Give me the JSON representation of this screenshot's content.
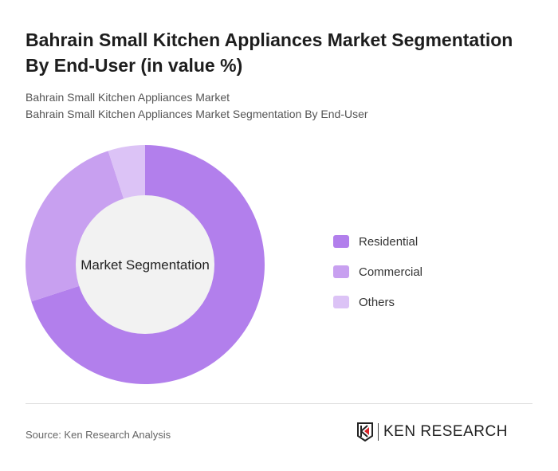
{
  "title": "Bahrain Small Kitchen Appliances Market Segmentation By End-User (in value %)",
  "subtitle_1": "Bahrain Small Kitchen Appliances Market",
  "subtitle_2": "Bahrain Small Kitchen Appliances Market Segmentation By End-User",
  "chart_data": {
    "type": "pie",
    "variant": "donut",
    "center_label": "Market Segmentation",
    "categories": [
      "Residential",
      "Commercial",
      "Others"
    ],
    "values": [
      70,
      25,
      5
    ],
    "colors": [
      "#b27fec",
      "#c8a0f0",
      "#dcc3f6"
    ],
    "legend_position": "right"
  },
  "source": "Source: Ken Research Analysis",
  "logo_text": "KEN RESEARCH"
}
